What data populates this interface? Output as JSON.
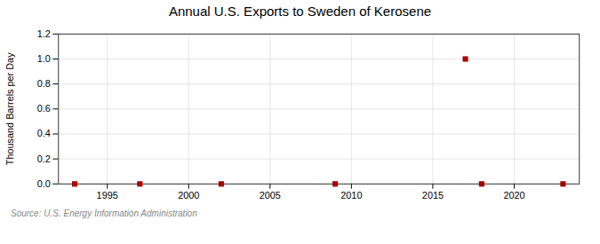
{
  "chart_data": {
    "type": "scatter",
    "title": "Annual U.S. Exports to Sweden of Kerosene",
    "ylabel": "Thousand Barrels per Day",
    "source": "Source: U.S. Energy Information Administration",
    "x": [
      1993,
      1997,
      2002,
      2009,
      2017,
      2018,
      2023
    ],
    "values": [
      0.0,
      0.0,
      0.0,
      0.0,
      1.0,
      0.0,
      0.0
    ],
    "color": "#aa0000",
    "marker": "square",
    "xlim": [
      1992,
      2024
    ],
    "xticks": [
      1995,
      2000,
      2005,
      2010,
      2015,
      2020
    ],
    "ylim": [
      0.0,
      1.2
    ],
    "yticks": [
      {
        "value": 0.0,
        "label": "0.0"
      },
      0.2,
      0.4,
      0.6,
      0.8,
      {
        "value": 1.0,
        "label": "1.0"
      },
      1.2
    ],
    "grid": true
  }
}
